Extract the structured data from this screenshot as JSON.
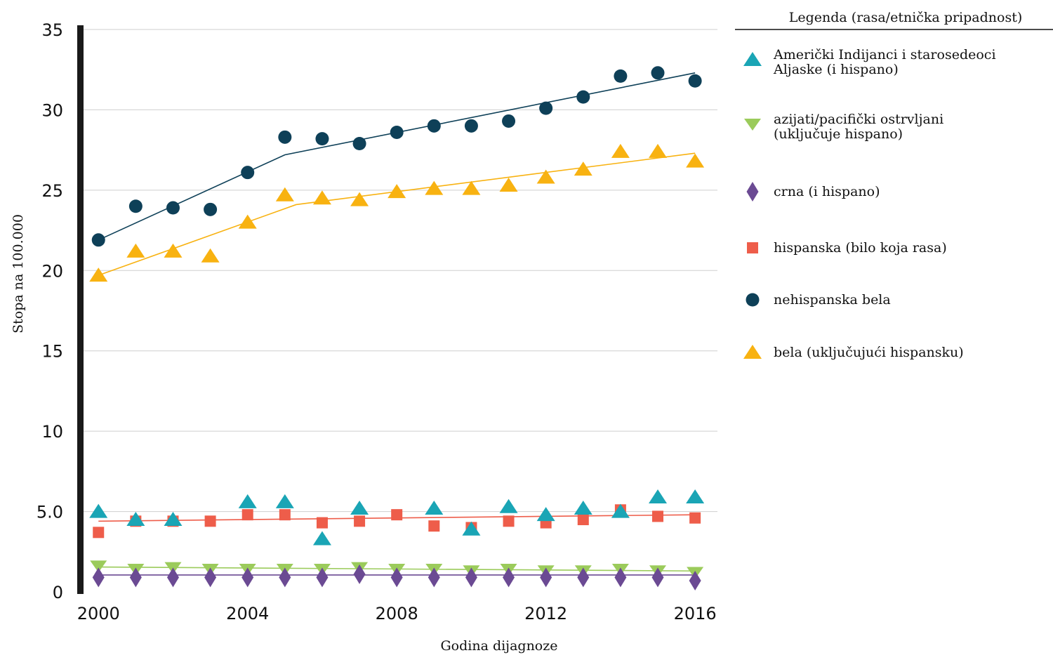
{
  "chart_data": {
    "type": "scatter",
    "title": "",
    "xlabel": "Godina dijagnoze",
    "ylabel": "Stopa na 100.000",
    "xlim": [
      1999.6,
      2016.6
    ],
    "ylim": [
      0,
      35
    ],
    "x_ticks": [
      "2000",
      "2004",
      "2008",
      "2012",
      "2016"
    ],
    "y_ticks": [
      "0",
      "5.0",
      "10",
      "15",
      "20",
      "25",
      "30",
      "35"
    ],
    "grid": "horizontal",
    "legend_position": "right",
    "legend_title": "Legenda (rasa/etnička pripadnost)",
    "x": [
      2000,
      2001,
      2002,
      2003,
      2004,
      2005,
      2006,
      2007,
      2008,
      2009,
      2010,
      2011,
      2012,
      2013,
      2014,
      2015,
      2016
    ],
    "series": [
      {
        "key": "aian",
        "name": "Američki Indijanci i starosedeoci Aljaske (i hispano)",
        "label_lines": [
          "Američki Indijanci i starosedeoci",
          "Aljaske (i hispano)"
        ],
        "marker": "triangle-up",
        "color": "#1AA5B5",
        "x": [
          2000,
          2001,
          2002,
          2004,
          2005,
          2006,
          2007,
          2009,
          2010,
          2011,
          2012,
          2013,
          2014,
          2015,
          2016
        ],
        "values": [
          5.0,
          4.5,
          4.5,
          5.6,
          5.6,
          3.3,
          5.2,
          5.2,
          3.9,
          5.3,
          4.8,
          5.2,
          5.0,
          5.9,
          5.9
        ],
        "trend": null
      },
      {
        "key": "api",
        "name": "azijati/pacifički ostrvljani (uključuje hispano)",
        "label_lines": [
          "azijati/pacifički ostrvljani",
          "(uključuje hispano)"
        ],
        "marker": "triangle-down",
        "color": "#9BCB5B",
        "values": [
          1.6,
          1.4,
          1.5,
          1.4,
          1.4,
          1.4,
          1.4,
          1.5,
          1.4,
          1.4,
          1.3,
          1.4,
          1.3,
          1.3,
          1.4,
          1.3,
          1.2
        ],
        "trend": [
          [
            2000,
            1.55
          ],
          [
            2016,
            1.3
          ]
        ]
      },
      {
        "key": "black",
        "name": "crna (i hispano)",
        "label_lines": [
          "crna (i hispano)"
        ],
        "marker": "diamond",
        "color": "#6B4A93",
        "values": [
          0.9,
          0.9,
          0.9,
          0.9,
          0.9,
          0.9,
          0.9,
          1.1,
          0.9,
          0.9,
          0.9,
          0.9,
          0.9,
          0.9,
          0.9,
          0.9,
          0.7
        ],
        "trend": [
          [
            2000,
            1.05
          ],
          [
            2016,
            1.05
          ]
        ]
      },
      {
        "key": "hispanic",
        "name": "hispanska (bilo koja rasa)",
        "label_lines": [
          "hispanska (bilo koja rasa)"
        ],
        "marker": "square",
        "color": "#EE5D4A",
        "values": [
          3.7,
          4.4,
          4.4,
          4.4,
          4.8,
          4.8,
          4.3,
          4.4,
          4.8,
          4.1,
          4.0,
          4.4,
          4.3,
          4.5,
          5.1,
          4.7,
          4.6
        ],
        "trend": [
          [
            2000,
            4.4
          ],
          [
            2016,
            4.8
          ]
        ]
      },
      {
        "key": "nhw",
        "name": "nehispanska bela",
        "label_lines": [
          "nehispanska bela"
        ],
        "marker": "circle",
        "color": "#0E4058",
        "values": [
          21.9,
          24.0,
          23.9,
          23.8,
          26.1,
          28.3,
          28.2,
          27.9,
          28.6,
          29.0,
          29.0,
          29.3,
          30.1,
          30.8,
          32.1,
          32.3,
          31.8
        ],
        "trend": [
          [
            2000,
            21.9
          ],
          [
            2005,
            27.2
          ],
          [
            2016,
            32.3
          ]
        ]
      },
      {
        "key": "white",
        "name": "bela (uključujući hispansku)",
        "label_lines": [
          "bela (uključujući hispansku)"
        ],
        "marker": "triangle-up",
        "color": "#F8B211",
        "values": [
          19.7,
          21.2,
          21.2,
          20.9,
          23.0,
          24.7,
          24.5,
          24.4,
          24.9,
          25.1,
          25.1,
          25.3,
          25.8,
          26.3,
          27.4,
          27.4,
          26.8
        ],
        "trend": [
          [
            2000,
            19.7
          ],
          [
            2005.3,
            24.1
          ],
          [
            2016,
            27.3
          ]
        ]
      }
    ]
  }
}
